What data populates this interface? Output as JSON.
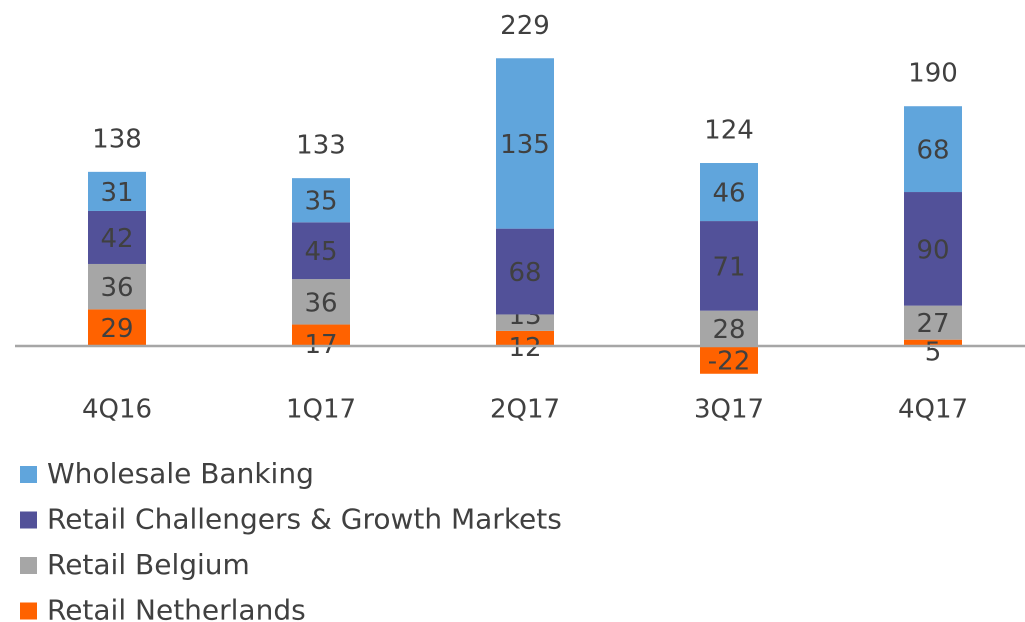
{
  "chart_data": {
    "type": "stacked_bar",
    "categories": [
      "4Q16",
      "1Q17",
      "2Q17",
      "3Q17",
      "4Q17"
    ],
    "series": [
      {
        "name": "Retail Netherlands",
        "color": "#ff6200",
        "values": [
          29,
          17,
          12,
          -22,
          5
        ]
      },
      {
        "name": "Retail Belgium",
        "color": "#a6a6a6",
        "values": [
          36,
          36,
          13,
          28,
          27
        ]
      },
      {
        "name": "Retail Challengers & Growth Markets",
        "color": "#525199",
        "values": [
          42,
          45,
          68,
          71,
          90
        ]
      },
      {
        "name": "Wholesale Banking",
        "color": "#60a5dc",
        "values": [
          31,
          35,
          135,
          46,
          68
        ]
      }
    ],
    "totals": [
      138,
      133,
      229,
      124,
      190
    ]
  }
}
